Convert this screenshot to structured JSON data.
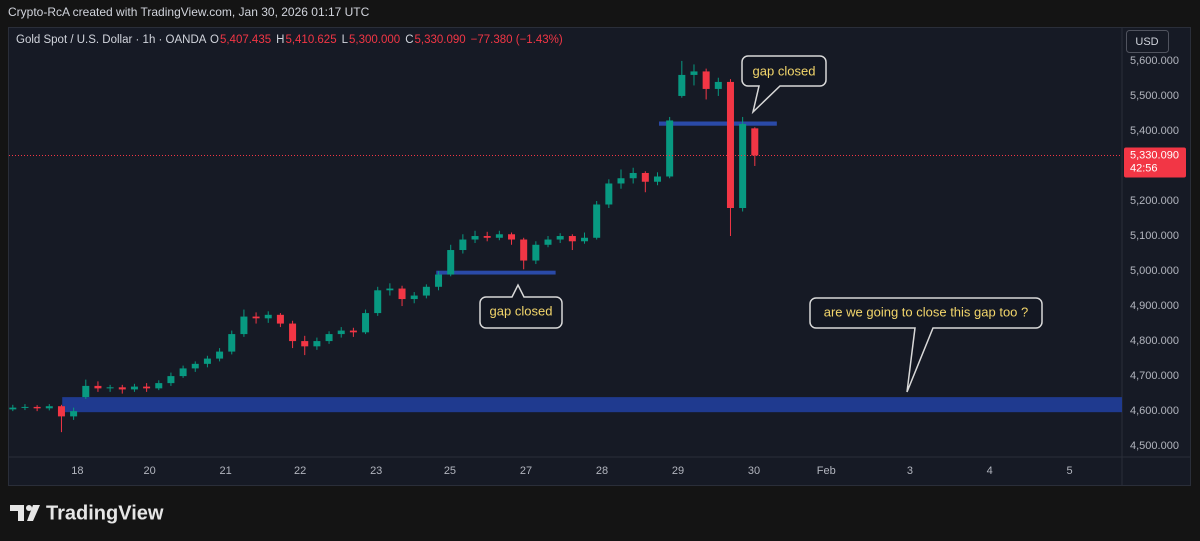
{
  "chart_data": {
    "type": "candlestick",
    "credit": "Crypto-RcA created with TradingView.com, Jan 30, 2026 01:17 UTC",
    "title": "Gold Spot / U.S. Dollar · 1h · OANDA",
    "legend_fields": [
      {
        "key": "O",
        "value": "5,407.435"
      },
      {
        "key": "H",
        "value": "5,410.625"
      },
      {
        "key": "L",
        "value": "5,300.000"
      },
      {
        "key": "C",
        "value": "5,330.090"
      }
    ],
    "change": "−77.380 (−1.43%)",
    "currency": "USD",
    "last_price_label": "5,330.090",
    "countdown": "42:56",
    "brand": "TradingView",
    "up_color": "#089981",
    "down_color": "#f23645",
    "grid": false,
    "xlim": [
      -0.9,
      13.74
    ],
    "ylim": [
      4469,
      5694
    ],
    "xticks": [
      {
        "value": 0,
        "label": "18"
      },
      {
        "value": 0.95,
        "label": "20"
      },
      {
        "value": 1.95,
        "label": "21"
      },
      {
        "value": 2.93,
        "label": "22"
      },
      {
        "value": 3.93,
        "label": "23"
      },
      {
        "value": 4.9,
        "label": "25"
      },
      {
        "value": 5.9,
        "label": "27"
      },
      {
        "value": 6.9,
        "label": "28"
      },
      {
        "value": 7.9,
        "label": "29"
      },
      {
        "value": 8.9,
        "label": "30"
      },
      {
        "value": 9.85,
        "label": "Feb"
      },
      {
        "value": 10.95,
        "label": "3"
      },
      {
        "value": 12.0,
        "label": "4"
      },
      {
        "value": 13.05,
        "label": "5"
      }
    ],
    "yticks": [
      {
        "value": 4500,
        "label": "4,500.000"
      },
      {
        "value": 4600,
        "label": "4,600.000"
      },
      {
        "value": 4700,
        "label": "4,700.000"
      },
      {
        "value": 4800,
        "label": "4,800.000"
      },
      {
        "value": 4900,
        "label": "4,900.000"
      },
      {
        "value": 5000,
        "label": "5,000.000"
      },
      {
        "value": 5100,
        "label": "5,100.000"
      },
      {
        "value": 5200,
        "label": "5,200.000"
      },
      {
        "value": 5300,
        "label": "5,300.000"
      },
      {
        "value": 5400,
        "label": "5,400.000"
      },
      {
        "value": 5500,
        "label": "5,500.000"
      },
      {
        "value": 5600,
        "label": "5,600.000"
      }
    ],
    "x": [
      -0.85,
      -0.69,
      -0.53,
      -0.37,
      -0.21,
      -0.05,
      0.11,
      0.27,
      0.43,
      0.59,
      0.75,
      0.91,
      1.07,
      1.23,
      1.39,
      1.55,
      1.71,
      1.87,
      2.03,
      2.19,
      2.35,
      2.51,
      2.67,
      2.83,
      2.99,
      3.15,
      3.31,
      3.47,
      3.63,
      3.79,
      3.95,
      4.11,
      4.27,
      4.43,
      4.59,
      4.75,
      4.91,
      5.07,
      5.23,
      5.39,
      5.55,
      5.71,
      5.87,
      6.03,
      6.19,
      6.35,
      6.51,
      6.67,
      6.83,
      6.99,
      7.15,
      7.31,
      7.47,
      7.63,
      7.79,
      7.95,
      8.11,
      8.27,
      8.43,
      8.59,
      8.75,
      8.91
    ],
    "ohlc": [
      [
        4605,
        4618,
        4600,
        4610
      ],
      [
        4610,
        4620,
        4603,
        4612
      ],
      [
        4612,
        4617,
        4600,
        4608
      ],
      [
        4608,
        4620,
        4602,
        4614
      ],
      [
        4614,
        4618,
        4540,
        4585
      ],
      [
        4585,
        4610,
        4575,
        4600
      ],
      [
        4640,
        4690,
        4635,
        4672
      ],
      [
        4672,
        4685,
        4655,
        4665
      ],
      [
        4665,
        4675,
        4655,
        4668
      ],
      [
        4668,
        4675,
        4650,
        4662
      ],
      [
        4662,
        4678,
        4655,
        4670
      ],
      [
        4670,
        4680,
        4655,
        4665
      ],
      [
        4665,
        4688,
        4660,
        4680
      ],
      [
        4680,
        4710,
        4672,
        4700
      ],
      [
        4700,
        4730,
        4695,
        4722
      ],
      [
        4722,
        4742,
        4712,
        4735
      ],
      [
        4735,
        4758,
        4725,
        4750
      ],
      [
        4750,
        4780,
        4742,
        4770
      ],
      [
        4770,
        4830,
        4762,
        4820
      ],
      [
        4820,
        4890,
        4812,
        4870
      ],
      [
        4870,
        4882,
        4850,
        4865
      ],
      [
        4865,
        4885,
        4852,
        4875
      ],
      [
        4875,
        4880,
        4840,
        4850
      ],
      [
        4850,
        4858,
        4780,
        4800
      ],
      [
        4800,
        4815,
        4760,
        4785
      ],
      [
        4785,
        4810,
        4775,
        4800
      ],
      [
        4800,
        4828,
        4792,
        4820
      ],
      [
        4820,
        4840,
        4810,
        4830
      ],
      [
        4830,
        4838,
        4812,
        4825
      ],
      [
        4825,
        4890,
        4820,
        4880
      ],
      [
        4880,
        4955,
        4872,
        4945
      ],
      [
        4945,
        4965,
        4930,
        4950
      ],
      [
        4950,
        4958,
        4900,
        4920
      ],
      [
        4920,
        4940,
        4908,
        4930
      ],
      [
        4930,
        4962,
        4922,
        4955
      ],
      [
        4955,
        5000,
        4945,
        4990
      ],
      [
        4990,
        5075,
        4985,
        5060
      ],
      [
        5060,
        5105,
        5050,
        5090
      ],
      [
        5090,
        5115,
        5080,
        5100
      ],
      [
        5100,
        5112,
        5085,
        5095
      ],
      [
        5095,
        5115,
        5088,
        5105
      ],
      [
        5105,
        5110,
        5075,
        5090
      ],
      [
        5090,
        5095,
        5005,
        5030
      ],
      [
        5030,
        5085,
        5020,
        5075
      ],
      [
        5075,
        5100,
        5068,
        5090
      ],
      [
        5090,
        5108,
        5080,
        5100
      ],
      [
        5100,
        5105,
        5060,
        5085
      ],
      [
        5085,
        5110,
        5078,
        5095
      ],
      [
        5095,
        5200,
        5090,
        5190
      ],
      [
        5190,
        5262,
        5180,
        5250
      ],
      [
        5250,
        5290,
        5235,
        5265
      ],
      [
        5265,
        5295,
        5250,
        5280
      ],
      [
        5280,
        5285,
        5225,
        5255
      ],
      [
        5255,
        5282,
        5245,
        5270
      ],
      [
        5270,
        5440,
        5265,
        5430
      ],
      [
        5500,
        5600,
        5495,
        5560
      ],
      [
        5560,
        5590,
        5530,
        5570
      ],
      [
        5570,
        5578,
        5490,
        5520
      ],
      [
        5520,
        5552,
        5500,
        5540
      ],
      [
        5540,
        5548,
        5100,
        5180
      ],
      [
        5180,
        5440,
        5170,
        5420
      ],
      [
        5407.435,
        5410.625,
        5300,
        5330.09
      ]
    ],
    "zones": [
      {
        "x": [
          -0.2,
          13.74
        ],
        "y": [
          4597,
          4640
        ],
        "color": "#1f3a8f"
      },
      {
        "x": [
          7.65,
          9.2
        ],
        "y": [
          5415,
          5427
        ],
        "color": "#2a4aa8"
      },
      {
        "x": [
          4.72,
          6.29
        ],
        "y": [
          4990,
          5001
        ],
        "color": "#2a4aa8"
      }
    ],
    "annotations": [
      "gap closed",
      "gap closed",
      "are we going to close this gap too ?"
    ]
  }
}
